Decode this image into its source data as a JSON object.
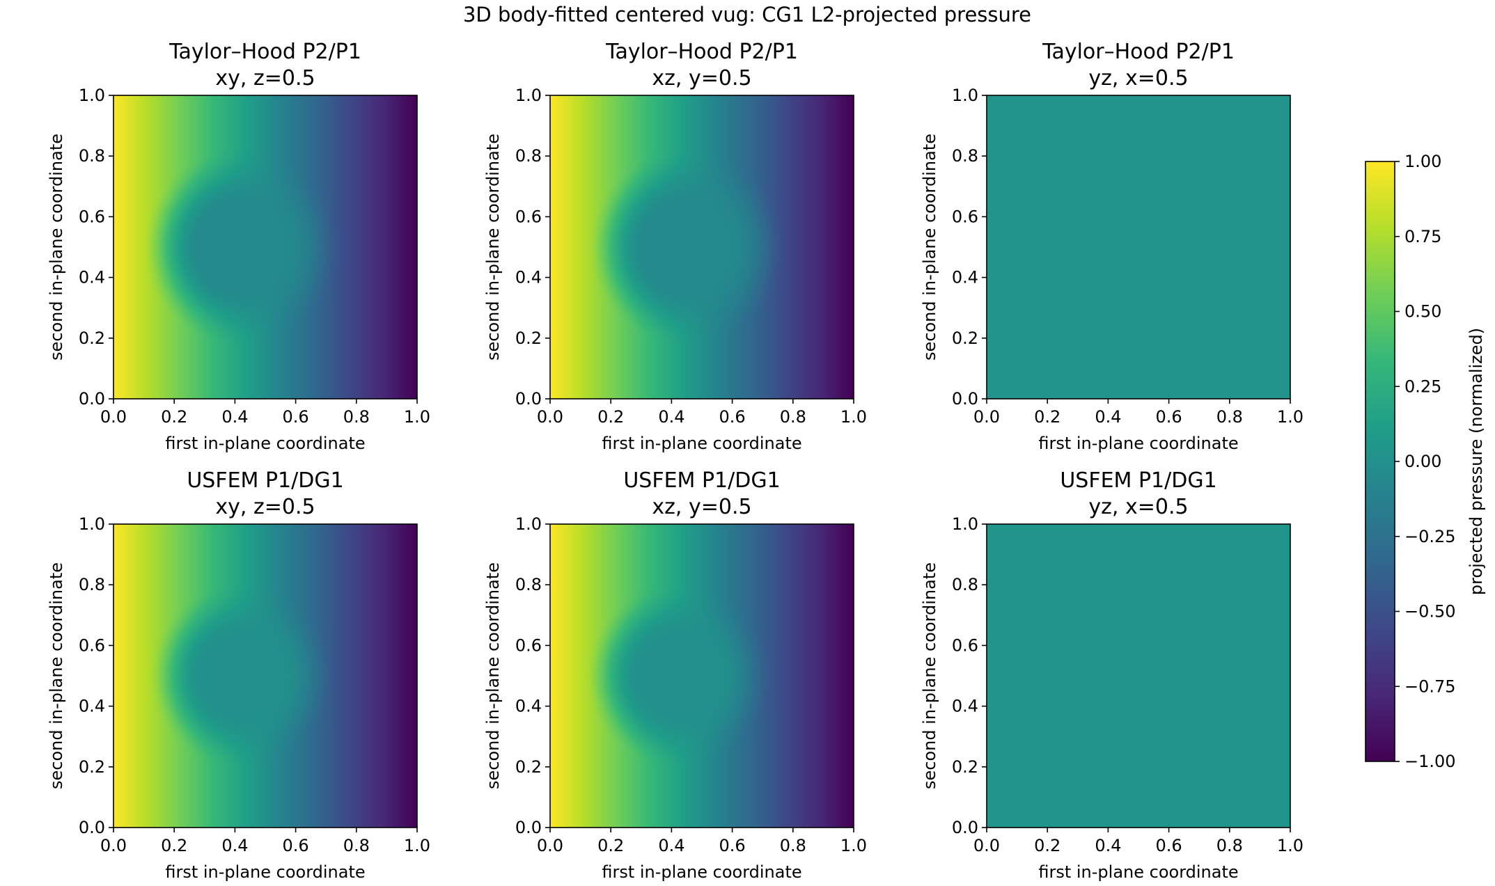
{
  "figure_title": "3D body-fitted centered vug: CG1 L2-projected pressure",
  "colormap": {
    "name": "viridis",
    "stops": [
      "#440154",
      "#482878",
      "#3e4989",
      "#31688e",
      "#26828e",
      "#1f9e89",
      "#35b779",
      "#6ece58",
      "#b5de2b",
      "#fde725"
    ]
  },
  "colorbar": {
    "label": "projected pressure (normalized)",
    "range": [
      -1.0,
      1.0
    ],
    "ticks": [
      1.0,
      0.75,
      0.5,
      0.25,
      0.0,
      -0.25,
      -0.5,
      -0.75,
      -1.0
    ],
    "tick_labels": [
      "1.00",
      "0.75",
      "0.50",
      "0.25",
      "0.00",
      "−0.25",
      "−0.50",
      "−0.75",
      "−1.00"
    ]
  },
  "chart_data": [
    {
      "type": "heatmap",
      "title": "Taylor–Hood P2/P1\nxy, z=0.5",
      "method": "Taylor–Hood P2/P1",
      "slice": "xy, z=0.5",
      "xlabel": "first in-plane coordinate",
      "ylabel": "second in-plane coordinate",
      "xlim": [
        0.0,
        1.0
      ],
      "ylim": [
        0.0,
        1.0
      ],
      "xticks": [
        "0.0",
        "0.2",
        "0.4",
        "0.6",
        "0.8",
        "1.0"
      ],
      "yticks": [
        "0.0",
        "0.2",
        "0.4",
        "0.6",
        "0.8",
        "1.0"
      ],
      "field": {
        "kind": "vug",
        "vug_center": [
          0.42,
          0.5
        ],
        "vug_radius": 0.3,
        "vug_level": -0.05,
        "vmin": -1.0,
        "vmax": 1.0
      }
    },
    {
      "type": "heatmap",
      "title": "Taylor–Hood P2/P1\nxz, y=0.5",
      "method": "Taylor–Hood P2/P1",
      "slice": "xz, y=0.5",
      "xlabel": "first in-plane coordinate",
      "ylabel": "second in-plane coordinate",
      "xlim": [
        0.0,
        1.0
      ],
      "ylim": [
        0.0,
        1.0
      ],
      "xticks": [
        "0.0",
        "0.2",
        "0.4",
        "0.6",
        "0.8",
        "1.0"
      ],
      "yticks": [
        "0.0",
        "0.2",
        "0.4",
        "0.6",
        "0.8",
        "1.0"
      ],
      "field": {
        "kind": "vug",
        "vug_center": [
          0.45,
          0.5
        ],
        "vug_radius": 0.3,
        "vug_level": -0.05,
        "vmin": -1.0,
        "vmax": 1.0
      }
    },
    {
      "type": "heatmap",
      "title": "Taylor–Hood P2/P1\nyz, x=0.5",
      "method": "Taylor–Hood P2/P1",
      "slice": "yz, x=0.5",
      "xlabel": "first in-plane coordinate",
      "ylabel": "second in-plane coordinate",
      "xlim": [
        0.0,
        1.0
      ],
      "ylim": [
        0.0,
        1.0
      ],
      "xticks": [
        "0.0",
        "0.2",
        "0.4",
        "0.6",
        "0.8",
        "1.0"
      ],
      "yticks": [
        "0.0",
        "0.2",
        "0.4",
        "0.6",
        "0.8",
        "1.0"
      ],
      "field": {
        "kind": "uniform",
        "value": 0.03
      }
    },
    {
      "type": "heatmap",
      "title": "USFEM P1/DG1\nxy, z=0.5",
      "method": "USFEM P1/DG1",
      "slice": "xy, z=0.5",
      "xlabel": "first in-plane coordinate",
      "ylabel": "second in-plane coordinate",
      "xlim": [
        0.0,
        1.0
      ],
      "ylim": [
        0.0,
        1.0
      ],
      "xticks": [
        "0.0",
        "0.2",
        "0.4",
        "0.6",
        "0.8",
        "1.0"
      ],
      "yticks": [
        "0.0",
        "0.2",
        "0.4",
        "0.6",
        "0.8",
        "1.0"
      ],
      "field": {
        "kind": "vug",
        "vug_center": [
          0.42,
          0.5
        ],
        "vug_radius": 0.28,
        "vug_level": 0.0,
        "vmin": -1.0,
        "vmax": 1.0
      }
    },
    {
      "type": "heatmap",
      "title": "USFEM P1/DG1\nxz, y=0.5",
      "method": "USFEM P1/DG1",
      "slice": "xz, y=0.5",
      "xlabel": "first in-plane coordinate",
      "ylabel": "second in-plane coordinate",
      "xlim": [
        0.0,
        1.0
      ],
      "ylim": [
        0.0,
        1.0
      ],
      "xticks": [
        "0.0",
        "0.2",
        "0.4",
        "0.6",
        "0.8",
        "1.0"
      ],
      "yticks": [
        "0.0",
        "0.2",
        "0.4",
        "0.6",
        "0.8",
        "1.0"
      ],
      "field": {
        "kind": "vug",
        "vug_center": [
          0.42,
          0.5
        ],
        "vug_radius": 0.28,
        "vug_level": 0.0,
        "vmin": -1.0,
        "vmax": 1.0
      }
    },
    {
      "type": "heatmap",
      "title": "USFEM P1/DG1\nyz, x=0.5",
      "method": "USFEM P1/DG1",
      "slice": "yz, x=0.5",
      "xlabel": "first in-plane coordinate",
      "ylabel": "second in-plane coordinate",
      "xlim": [
        0.0,
        1.0
      ],
      "ylim": [
        0.0,
        1.0
      ],
      "xticks": [
        "0.0",
        "0.2",
        "0.4",
        "0.6",
        "0.8",
        "1.0"
      ],
      "yticks": [
        "0.0",
        "0.2",
        "0.4",
        "0.6",
        "0.8",
        "1.0"
      ],
      "field": {
        "kind": "uniform",
        "value": 0.04
      }
    }
  ]
}
